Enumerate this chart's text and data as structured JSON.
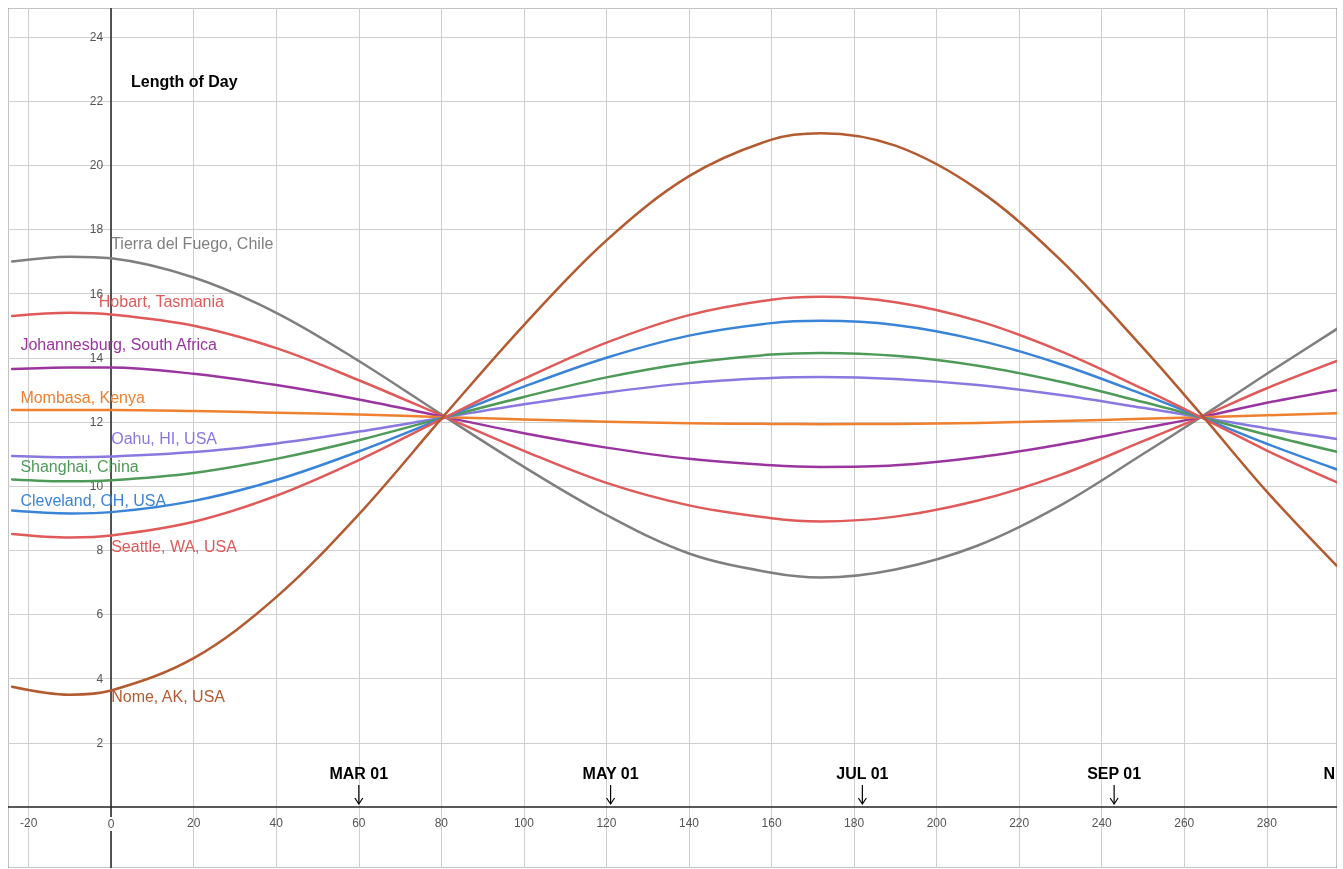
{
  "chart_data": {
    "type": "line",
    "title": "Length of Day",
    "x": [
      -24,
      -10,
      0,
      20,
      40,
      60,
      81,
      100,
      120,
      140,
      160,
      172,
      190,
      210,
      230,
      250,
      264,
      280,
      297
    ],
    "series": [
      {
        "name": "Tierra del Fuego, Chile",
        "color": "#7f7f7f",
        "values": [
          17.0,
          17.15,
          17.1,
          16.5,
          15.4,
          13.9,
          12.15,
          10.6,
          9.1,
          7.9,
          7.3,
          7.15,
          7.4,
          8.15,
          9.4,
          11.0,
          12.15,
          13.5,
          14.9
        ]
      },
      {
        "name": "Hobart, Tasmania",
        "color": "#e05a5a",
        "values": [
          15.3,
          15.4,
          15.35,
          15.0,
          14.3,
          13.3,
          12.15,
          11.1,
          10.1,
          9.4,
          9.0,
          8.9,
          9.05,
          9.55,
          10.35,
          11.4,
          12.15,
          13.05,
          13.9
        ]
      },
      {
        "name": "Johannesburg, South Africa",
        "color": "#9a35a0",
        "values": [
          13.65,
          13.7,
          13.7,
          13.5,
          13.15,
          12.7,
          12.15,
          11.65,
          11.2,
          10.85,
          10.65,
          10.6,
          10.65,
          10.9,
          11.3,
          11.8,
          12.15,
          12.6,
          13.0
        ]
      },
      {
        "name": "Mombasa, Kenya",
        "color": "#ee8030",
        "values": [
          12.37,
          12.37,
          12.37,
          12.34,
          12.29,
          12.23,
          12.15,
          12.08,
          12.01,
          11.96,
          11.94,
          11.93,
          11.94,
          11.97,
          12.03,
          12.1,
          12.15,
          12.21,
          12.27
        ]
      },
      {
        "name": "Oahu, HI, USA",
        "color": "#8878e0",
        "values": [
          10.94,
          10.9,
          10.92,
          11.06,
          11.33,
          11.7,
          12.15,
          12.55,
          12.92,
          13.21,
          13.37,
          13.4,
          13.34,
          13.15,
          12.84,
          12.44,
          12.15,
          11.8,
          11.47
        ]
      },
      {
        "name": "Shanghai, China",
        "color": "#4e9a58",
        "values": [
          10.21,
          10.15,
          10.18,
          10.41,
          10.85,
          11.43,
          12.15,
          12.78,
          13.39,
          13.84,
          14.1,
          14.15,
          14.06,
          13.75,
          13.25,
          12.62,
          12.15,
          11.6,
          11.07
        ]
      },
      {
        "name": "Cleveland, OH, USA",
        "color": "#3a84d8",
        "values": [
          9.24,
          9.15,
          9.19,
          9.54,
          10.19,
          11.08,
          12.15,
          13.1,
          14.0,
          14.69,
          15.08,
          15.15,
          15.02,
          14.55,
          13.8,
          12.86,
          12.15,
          11.32,
          10.52
        ]
      },
      {
        "name": "Seattle, WA, USA",
        "color": "#e05a5a",
        "values": [
          8.51,
          8.4,
          8.46,
          8.89,
          9.7,
          10.81,
          12.15,
          13.34,
          14.47,
          15.33,
          15.81,
          15.9,
          15.73,
          15.15,
          14.21,
          13.03,
          12.15,
          11.11,
          10.12
        ]
      },
      {
        "name": "Nome, AK, USA",
        "color": "#b45a30",
        "values": [
          3.75,
          3.5,
          3.63,
          4.64,
          6.54,
          9.12,
          12.25,
          15.02,
          17.66,
          19.66,
          20.8,
          21.0,
          20.61,
          19.24,
          17.05,
          14.31,
          12.25,
          9.83,
          7.51
        ]
      }
    ],
    "annotations": [
      "MAR 01",
      "MAY 01",
      "JUL 01",
      "SEP 01",
      "N"
    ],
    "xlim": [
      -25,
      297
    ],
    "ylim": [
      -1.9,
      24.9
    ],
    "xticks": [
      -20,
      0,
      20,
      40,
      60,
      80,
      100,
      120,
      140,
      160,
      180,
      200,
      220,
      240,
      260,
      280
    ],
    "yticks": [
      2,
      4,
      6,
      8,
      10,
      12,
      14,
      16,
      18,
      20,
      22,
      24
    ],
    "grid": true,
    "legend": false,
    "marker": "none",
    "line_style": "solid"
  }
}
